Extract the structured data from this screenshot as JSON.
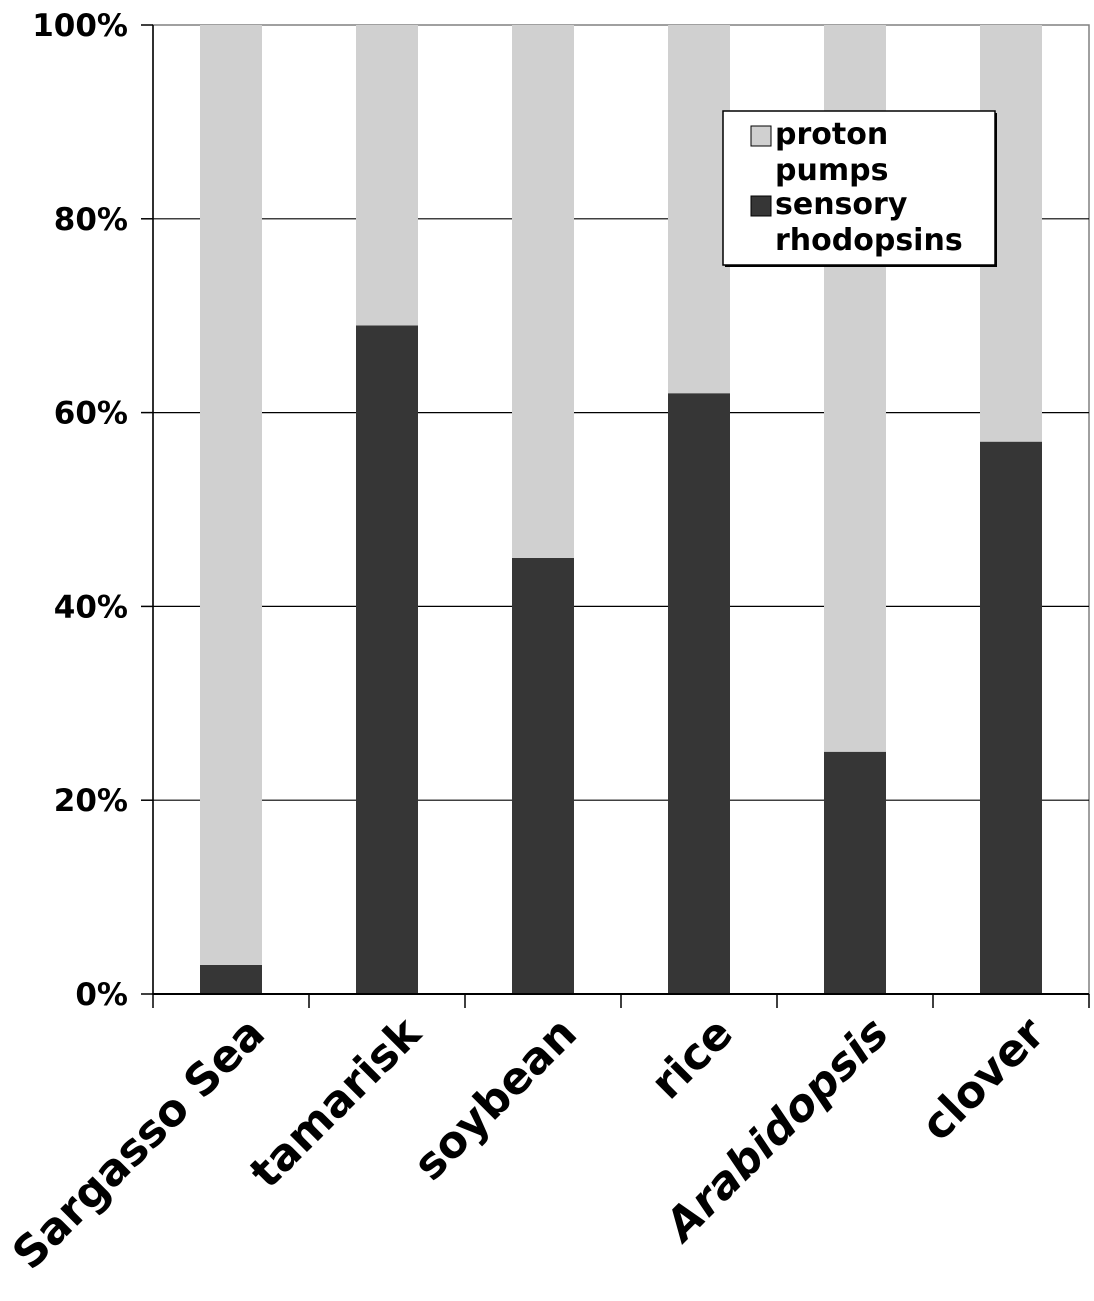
{
  "chart_data": {
    "type": "bar",
    "stacked": true,
    "percent": true,
    "categories": [
      "Sargasso Sea",
      "tamarisk",
      "soybean",
      "rice",
      "Arabidopsis",
      "clover"
    ],
    "italic_categories": [
      "Arabidopsis"
    ],
    "series": [
      {
        "name": "sensory rhodopsins",
        "values": [
          3,
          69,
          45,
          62,
          25,
          57
        ],
        "color": "#363636"
      },
      {
        "name": "proton pumps",
        "values": [
          97,
          31,
          55,
          38,
          75,
          43
        ],
        "color": "#d0d0d0"
      }
    ],
    "legend_order": [
      1,
      0
    ],
    "legend_lines": {
      "proton pumps": [
        "proton",
        "pumps"
      ],
      "sensory rhodopsins": [
        "sensory",
        "rhodopsins"
      ]
    },
    "ylim": [
      0,
      100
    ],
    "yticks": [
      0,
      20,
      40,
      60,
      80,
      100
    ],
    "ytick_labels": [
      "0%",
      "20%",
      "40%",
      "60%",
      "80%",
      "100%"
    ],
    "grid": true,
    "legend_position": "top-right"
  }
}
